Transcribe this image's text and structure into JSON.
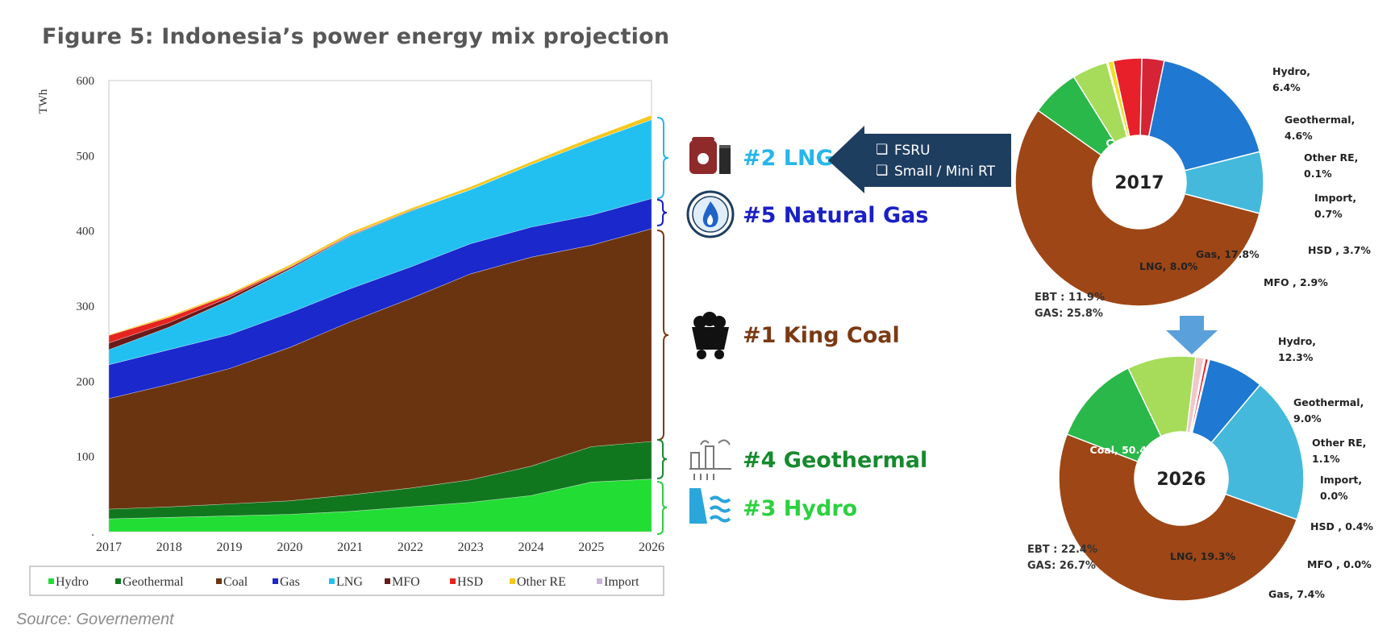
{
  "figure": {
    "title": "Figure 5: Indonesia’s power energy mix projection",
    "source": "Source: Governement"
  },
  "chart_data": [
    {
      "type": "area",
      "stacked": true,
      "ylabel": "TWh",
      "ylim": [
        0,
        600
      ],
      "yticks": [
        "0",
        "100",
        "200",
        "300",
        "400",
        "500",
        "600"
      ],
      "x": [
        "2017",
        "2018",
        "2019",
        "2020",
        "2021",
        "2022",
        "2023",
        "2024",
        "2025",
        "2026"
      ],
      "series": [
        {
          "name": "Hydro",
          "color": "#22dd33",
          "values": [
            17,
            19,
            21,
            23,
            27,
            33,
            39,
            48,
            66,
            70
          ]
        },
        {
          "name": "Geothermal",
          "color": "#11771f",
          "values": [
            13,
            14,
            16,
            18,
            22,
            25,
            30,
            39,
            47,
            50
          ]
        },
        {
          "name": "Coal",
          "color": "#6b3410",
          "values": [
            147,
            163,
            180,
            204,
            230,
            252,
            274,
            278,
            268,
            283
          ]
        },
        {
          "name": "Gas",
          "color": "#1a28cc",
          "values": [
            45,
            46,
            45,
            46,
            44,
            42,
            40,
            40,
            40,
            40
          ]
        },
        {
          "name": "LNG",
          "color": "#22c0f0",
          "values": [
            20,
            30,
            46,
            58,
            70,
            74,
            72,
            83,
            98,
            105
          ]
        },
        {
          "name": "MFO",
          "color": "#6a1a1a",
          "values": [
            9,
            6,
            4,
            2,
            1,
            1,
            0,
            0,
            0,
            0
          ]
        },
        {
          "name": "HSD",
          "color": "#e52420",
          "values": [
            10,
            7,
            3,
            1,
            1,
            0,
            0,
            0,
            0,
            0
          ]
        },
        {
          "name": "Other RE",
          "color": "#f6c81e",
          "values": [
            1,
            2,
            2,
            3,
            3,
            3,
            4,
            4,
            5,
            6
          ]
        },
        {
          "name": "Import",
          "color": "#c8b4d8",
          "values": [
            0,
            0,
            0,
            0,
            0,
            0,
            0,
            0,
            0,
            0
          ]
        }
      ],
      "grid": false,
      "legend": "bottom"
    },
    {
      "type": "pie",
      "center_label": "2017",
      "slices": [
        {
          "name": "Coal",
          "label_lines": [
            "Coal,",
            "55.6%"
          ],
          "value": 55.6,
          "color": "#9e4616"
        },
        {
          "name": "Hydro",
          "label_lines": [
            "Hydro,",
            "6.4%"
          ],
          "value": 6.4,
          "color": "#2ab84a"
        },
        {
          "name": "Geothermal",
          "label_lines": [
            "Geothermal,",
            "4.6%"
          ],
          "value": 4.6,
          "color": "#a6dc5a"
        },
        {
          "name": "Other RE",
          "label_lines": [
            "Other RE,",
            "0.1%"
          ],
          "value": 0.1,
          "color": "#f5f08c"
        },
        {
          "name": "Import",
          "label_lines": [
            "Import,",
            "0.7%"
          ],
          "value": 0.7,
          "color": "#f0e020"
        },
        {
          "name": "HSD",
          "label_lines": [
            "HSD , 3.7%"
          ],
          "value": 3.7,
          "color": "#e8202a"
        },
        {
          "name": "MFO",
          "label_lines": [
            "MFO , 2.9%"
          ],
          "value": 2.9,
          "color": "#d42436"
        },
        {
          "name": "Gas",
          "label_lines": [
            "Gas, 17.8%"
          ],
          "value": 17.8,
          "color": "#1f78d1"
        },
        {
          "name": "LNG",
          "label_lines": [
            "LNG, 8.0%"
          ],
          "value": 8.0,
          "color": "#45b9dc"
        }
      ],
      "notes": [
        "EBT : 11.9%",
        "GAS: 25.8%"
      ]
    },
    {
      "type": "pie",
      "center_label": "2026",
      "slices": [
        {
          "name": "Coal",
          "label_lines": [
            "Coal, 50.4%"
          ],
          "value": 50.4,
          "color": "#9e4616"
        },
        {
          "name": "Hydro",
          "label_lines": [
            "Hydro,",
            "12.3%"
          ],
          "value": 12.3,
          "color": "#2ab84a"
        },
        {
          "name": "Geothermal",
          "label_lines": [
            "Geothermal,",
            "9.0%"
          ],
          "value": 9.0,
          "color": "#a6dc5a"
        },
        {
          "name": "Other RE",
          "label_lines": [
            "Other RE,",
            "1.1%"
          ],
          "value": 1.1,
          "color": "#f0c8c8"
        },
        {
          "name": "Import",
          "label_lines": [
            "Import,",
            "0.0%"
          ],
          "value": 0.0,
          "color": "#f0e020"
        },
        {
          "name": "HSD",
          "label_lines": [
            "HSD , 0.4%"
          ],
          "value": 0.4,
          "color": "#e8202a"
        },
        {
          "name": "MFO",
          "label_lines": [
            "MFO , 0.0%"
          ],
          "value": 0.0,
          "color": "#d42436"
        },
        {
          "name": "Gas",
          "label_lines": [
            "Gas, 7.4%"
          ],
          "value": 7.4,
          "color": "#1f78d1"
        },
        {
          "name": "LNG",
          "label_lines": [
            "LNG, 19.3%"
          ],
          "value": 19.3,
          "color": "#45b9dc"
        }
      ],
      "notes": [
        "EBT : 22.4%",
        "GAS: 26.7%"
      ]
    }
  ],
  "rankings": [
    {
      "label": "#2 LNG",
      "color": "#26b6ea",
      "icon": "lng-tank-icon"
    },
    {
      "label": "#5 Natural Gas",
      "color": "#1a1fc6",
      "icon": "gas-flame-icon"
    },
    {
      "label": "#1 King Coal",
      "color": "#7b3a14",
      "icon": "coal-cart-icon"
    },
    {
      "label": "#4 Geothermal",
      "color": "#168a2e",
      "icon": "geothermal-plant-icon"
    },
    {
      "label": "#3 Hydro",
      "color": "#2bd13f",
      "icon": "hydro-dam-icon"
    }
  ],
  "callout": {
    "items": [
      "FSRU",
      "Small / Mini RT"
    ],
    "bullet": "❏",
    "color": "#1e3e60"
  },
  "arrow_color": "#5aa0db"
}
